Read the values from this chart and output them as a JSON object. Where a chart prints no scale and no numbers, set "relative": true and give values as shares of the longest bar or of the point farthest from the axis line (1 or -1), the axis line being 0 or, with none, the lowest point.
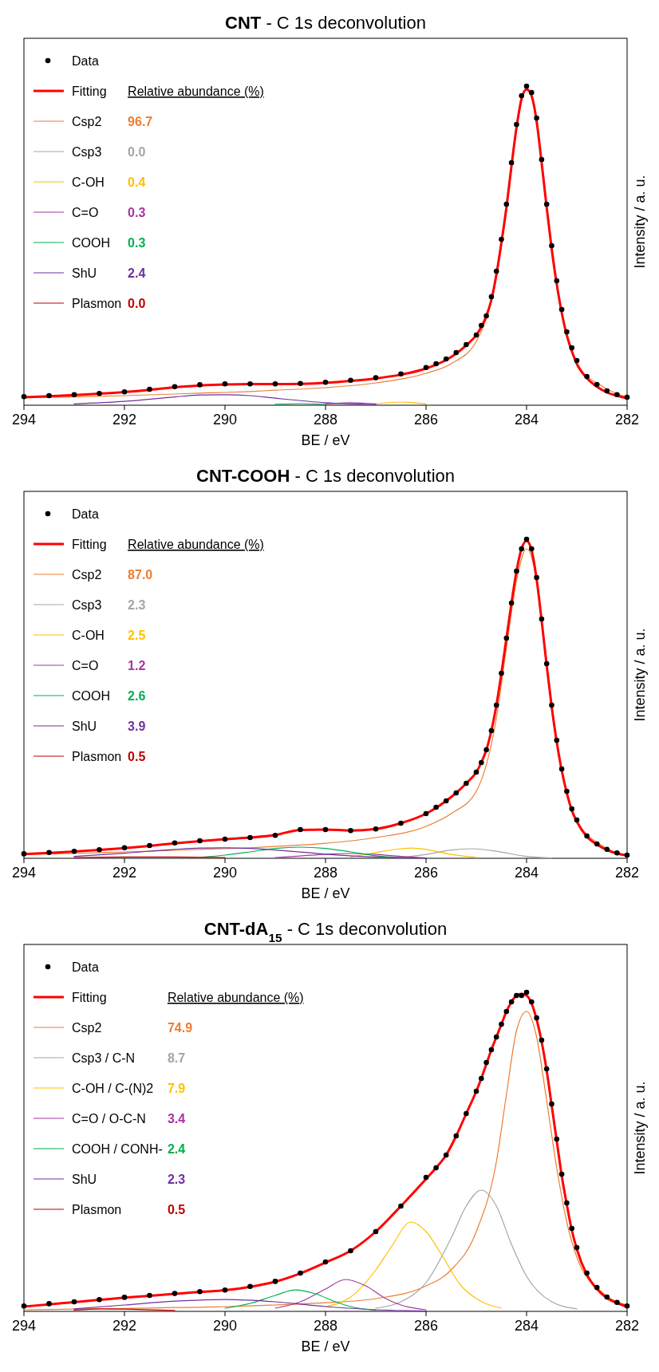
{
  "chart_data": [
    {
      "type": "line",
      "title": "CNT - C 1s deconvolution",
      "xlabel": "BE / eV",
      "ylabel": "Intensity / a. u.",
      "relative": true,
      "xlim": [
        294,
        282
      ],
      "xticks": [
        294,
        292,
        290,
        288,
        286,
        284,
        282
      ],
      "legend": "top left",
      "x": [
        294,
        293.5,
        293,
        292.5,
        292,
        291.5,
        291,
        290.5,
        290,
        289.5,
        289,
        288.5,
        288,
        287.5,
        287,
        286.5,
        286,
        285.8,
        285.6,
        285.4,
        285.2,
        285,
        284.9,
        284.8,
        284.7,
        284.6,
        284.5,
        284.4,
        284.3,
        284.2,
        284.1,
        284,
        283.9,
        283.8,
        283.7,
        283.6,
        283.5,
        283.4,
        283.3,
        283.2,
        283.1,
        283,
        282.8,
        282.6,
        282.4,
        282.2,
        282
      ],
      "series": [
        {
          "name": "Data",
          "type": "scatter",
          "marker": "circle",
          "color": "#000000",
          "values": [
            0.027,
            0.03,
            0.033,
            0.037,
            0.042,
            0.05,
            0.058,
            0.064,
            0.067,
            0.067,
            0.067,
            0.068,
            0.072,
            0.078,
            0.086,
            0.098,
            0.118,
            0.13,
            0.145,
            0.165,
            0.19,
            0.22,
            0.25,
            0.28,
            0.34,
            0.42,
            0.52,
            0.63,
            0.76,
            0.88,
            0.97,
            1,
            0.98,
            0.9,
            0.77,
            0.63,
            0.5,
            0.39,
            0.3,
            0.23,
            0.18,
            0.14,
            0.09,
            0.065,
            0.045,
            0.033,
            0.025
          ]
        },
        {
          "name": "Fitting",
          "color": "#ff0000",
          "values": [
            0.025,
            0.028,
            0.032,
            0.036,
            0.041,
            0.048,
            0.056,
            0.062,
            0.065,
            0.066,
            0.066,
            0.067,
            0.07,
            0.076,
            0.084,
            0.096,
            0.115,
            0.127,
            0.142,
            0.162,
            0.188,
            0.22,
            0.245,
            0.28,
            0.33,
            0.41,
            0.51,
            0.62,
            0.75,
            0.87,
            0.96,
            0.99,
            0.97,
            0.89,
            0.76,
            0.62,
            0.49,
            0.38,
            0.29,
            0.22,
            0.17,
            0.13,
            0.085,
            0.058,
            0.04,
            0.03,
            0.022
          ]
        },
        {
          "name": "Csp2",
          "color": "#ed7d31",
          "x": [
            294,
            293,
            292,
            291,
            290.5,
            290,
            289.5,
            289,
            288,
            287,
            286,
            285.5,
            285,
            284.6,
            284.4,
            284.2,
            284,
            283.8,
            283.6,
            283.4,
            283.2,
            283,
            282.5,
            282
          ],
          "values": [
            0.024,
            0.026,
            0.03,
            0.035,
            0.038,
            0.04,
            0.043,
            0.047,
            0.055,
            0.07,
            0.1,
            0.13,
            0.2,
            0.4,
            0.61,
            0.87,
            0.99,
            0.89,
            0.62,
            0.38,
            0.22,
            0.13,
            0.06,
            0.025
          ]
        },
        {
          "name": "Csp3",
          "color": "#a5a5a5",
          "values": [
            null,
            null,
            null,
            null,
            null,
            null,
            null,
            null,
            null,
            null,
            null,
            null,
            null,
            null,
            null,
            null,
            null,
            null,
            null,
            null,
            null,
            null,
            null,
            null,
            null,
            null,
            null,
            null,
            null,
            null,
            null,
            null,
            null,
            null,
            null,
            null,
            null,
            null,
            null,
            null,
            null,
            null,
            null,
            null,
            null,
            null,
            null
          ]
        },
        {
          "name": "C-OH",
          "color": "#ffc000",
          "x": [
            287,
            286.5,
            286
          ],
          "values": [
            0.004,
            0.01,
            0.004
          ]
        },
        {
          "name": "C=O",
          "color": "#a4379f",
          "x": [
            288,
            287.5,
            287
          ],
          "values": [
            0.004,
            0.008,
            0.004
          ]
        },
        {
          "name": "COOH",
          "color": "#00b050",
          "x": [
            289,
            288.5,
            288
          ],
          "values": [
            0.003,
            0.005,
            0.003
          ]
        },
        {
          "name": "ShU",
          "color": "#7030a0",
          "x": [
            293,
            292,
            291,
            290.5,
            290,
            289.5,
            289,
            288,
            287
          ],
          "values": [
            0.004,
            0.012,
            0.026,
            0.032,
            0.033,
            0.03,
            0.022,
            0.008,
            0.002
          ]
        },
        {
          "name": "Plasmon",
          "color": "#c00000",
          "values": [
            null,
            null,
            null,
            null,
            null,
            null,
            null,
            null,
            null,
            null,
            null,
            null,
            null,
            null,
            null,
            null,
            null,
            null,
            null,
            null,
            null,
            null,
            null,
            null,
            null,
            null,
            null,
            null,
            null,
            null,
            null,
            null,
            null,
            null,
            null,
            null,
            null,
            null,
            null,
            null,
            null,
            null,
            null,
            null,
            null,
            null,
            null
          ]
        }
      ],
      "annotations": [
        "Relative abundance (%)",
        "96.7",
        "0.0",
        "0.4",
        "0.3",
        "0.3",
        "2.4",
        "0.0"
      ]
    },
    {
      "type": "line",
      "title": "CNT-COOH - C 1s deconvolution",
      "xlabel": "BE / eV",
      "ylabel": "Intensity / a. u.",
      "relative": true,
      "xlim": [
        294,
        282
      ],
      "xticks": [
        294,
        292,
        290,
        288,
        286,
        284,
        282
      ],
      "legend": "top left",
      "x": [
        294,
        293.5,
        293,
        292.5,
        292,
        291.5,
        291,
        290.5,
        290,
        289.5,
        289,
        288.5,
        288,
        287.5,
        287,
        286.5,
        286,
        285.8,
        285.6,
        285.4,
        285.2,
        285,
        284.9,
        284.8,
        284.7,
        284.6,
        284.5,
        284.4,
        284.3,
        284.2,
        284.1,
        284,
        283.9,
        283.8,
        283.7,
        283.6,
        283.5,
        283.4,
        283.3,
        283.2,
        283.1,
        283,
        282.8,
        282.6,
        282.4,
        282.2,
        282
      ],
      "series": [
        {
          "name": "Data",
          "type": "scatter",
          "marker": "circle",
          "color": "#000000",
          "values": [
            0.014,
            0.018,
            0.022,
            0.027,
            0.033,
            0.04,
            0.048,
            0.055,
            0.06,
            0.065,
            0.072,
            0.09,
            0.09,
            0.087,
            0.092,
            0.11,
            0.14,
            0.16,
            0.18,
            0.205,
            0.235,
            0.27,
            0.3,
            0.34,
            0.4,
            0.48,
            0.58,
            0.69,
            0.8,
            0.9,
            0.97,
            1,
            0.97,
            0.88,
            0.75,
            0.61,
            0.48,
            0.37,
            0.28,
            0.21,
            0.155,
            0.12,
            0.07,
            0.045,
            0.028,
            0.017,
            0.01
          ]
        },
        {
          "name": "Fitting",
          "color": "#ff0000",
          "values": [
            0.013,
            0.017,
            0.021,
            0.026,
            0.032,
            0.039,
            0.047,
            0.054,
            0.06,
            0.065,
            0.073,
            0.089,
            0.09,
            0.087,
            0.092,
            0.11,
            0.14,
            0.158,
            0.18,
            0.205,
            0.235,
            0.27,
            0.3,
            0.34,
            0.4,
            0.48,
            0.58,
            0.69,
            0.8,
            0.9,
            0.97,
            0.995,
            0.965,
            0.875,
            0.745,
            0.605,
            0.475,
            0.365,
            0.275,
            0.205,
            0.15,
            0.115,
            0.068,
            0.043,
            0.026,
            0.015,
            0.009
          ]
        },
        {
          "name": "Csp2",
          "color": "#ed7d31",
          "x": [
            294,
            293,
            292,
            291,
            290.5,
            290,
            289.5,
            289,
            288,
            287,
            286,
            285.5,
            285,
            284.6,
            284.4,
            284.2,
            284,
            283.8,
            283.6,
            283.4,
            283.2,
            283,
            282.5,
            282
          ],
          "values": [
            0.012,
            0.015,
            0.02,
            0.025,
            0.028,
            0.03,
            0.033,
            0.037,
            0.047,
            0.065,
            0.1,
            0.14,
            0.21,
            0.44,
            0.66,
            0.87,
            0.97,
            0.87,
            0.6,
            0.37,
            0.21,
            0.12,
            0.04,
            0.01
          ]
        },
        {
          "name": "Csp3",
          "color": "#a5a5a5",
          "x": [
            286.5,
            286,
            285.5,
            285.1,
            284.6,
            284,
            283.5
          ],
          "values": [
            0.003,
            0.012,
            0.026,
            0.03,
            0.022,
            0.006,
            0.001
          ]
        },
        {
          "name": "C-OH",
          "color": "#ffc000",
          "x": [
            287.5,
            287,
            286.5,
            286.3,
            286,
            285.5,
            285
          ],
          "values": [
            0.004,
            0.018,
            0.03,
            0.032,
            0.028,
            0.012,
            0.003
          ]
        },
        {
          "name": "C=O",
          "color": "#a4379f",
          "x": [
            289,
            288.5,
            288,
            287.5,
            287,
            286.5,
            286
          ],
          "values": [
            0.002,
            0.007,
            0.013,
            0.015,
            0.012,
            0.006,
            0.001
          ]
        },
        {
          "name": "COOH",
          "color": "#00b050",
          "x": [
            290.5,
            290,
            289.5,
            289,
            288.5,
            288,
            287.5,
            287,
            286.5
          ],
          "values": [
            0.003,
            0.01,
            0.02,
            0.031,
            0.035,
            0.031,
            0.02,
            0.008,
            0.002
          ]
        },
        {
          "name": "ShU",
          "color": "#7030a0",
          "x": [
            293,
            292,
            291,
            290.5,
            290,
            289.5,
            289,
            288,
            287,
            286
          ],
          "values": [
            0.006,
            0.016,
            0.028,
            0.032,
            0.033,
            0.031,
            0.026,
            0.013,
            0.004,
            0.001
          ]
        },
        {
          "name": "Plasmon",
          "color": "#c00000",
          "x": [
            293,
            292,
            291,
            290
          ],
          "values": [
            0.002,
            0.004,
            0.004,
            0.002
          ]
        }
      ],
      "annotations": [
        "Relative abundance (%)",
        "87.0",
        "2.3",
        "2.5",
        "1.2",
        "2.6",
        "3.9",
        "0.5"
      ]
    },
    {
      "type": "line",
      "title": "CNT-dA$_{15}$ - C 1s deconvolution",
      "xlabel": "BE / eV",
      "ylabel": "Intensity / a. u.",
      "relative": true,
      "xlim": [
        294,
        282
      ],
      "xticks": [
        294,
        292,
        290,
        288,
        286,
        284,
        282
      ],
      "legend": "top left",
      "x": [
        294,
        293.5,
        293,
        292.5,
        292,
        291.5,
        291,
        290.5,
        290,
        289.5,
        289,
        288.5,
        288,
        287.5,
        287,
        286.5,
        286,
        285.8,
        285.6,
        285.4,
        285.2,
        285,
        284.9,
        284.8,
        284.7,
        284.6,
        284.5,
        284.4,
        284.3,
        284.2,
        284.1,
        284,
        283.9,
        283.8,
        283.7,
        283.6,
        283.5,
        283.4,
        283.3,
        283.2,
        283.1,
        283,
        282.8,
        282.6,
        282.4,
        282.2,
        282
      ],
      "series": [
        {
          "name": "Data",
          "type": "scatter",
          "marker": "circle",
          "color": "#000000",
          "values": [
            0.017,
            0.024,
            0.03,
            0.037,
            0.044,
            0.05,
            0.056,
            0.062,
            0.067,
            0.078,
            0.094,
            0.12,
            0.155,
            0.19,
            0.25,
            0.33,
            0.42,
            0.45,
            0.49,
            0.55,
            0.62,
            0.69,
            0.73,
            0.78,
            0.82,
            0.86,
            0.9,
            0.94,
            0.97,
            0.99,
            0.99,
            1,
            0.97,
            0.92,
            0.85,
            0.76,
            0.65,
            0.54,
            0.43,
            0.34,
            0.26,
            0.2,
            0.12,
            0.075,
            0.045,
            0.028,
            0.017
          ]
        },
        {
          "name": "Fitting",
          "color": "#ff0000",
          "values": [
            0.015,
            0.022,
            0.029,
            0.036,
            0.043,
            0.049,
            0.055,
            0.061,
            0.066,
            0.077,
            0.093,
            0.119,
            0.153,
            0.19,
            0.25,
            0.33,
            0.415,
            0.45,
            0.49,
            0.55,
            0.62,
            0.69,
            0.73,
            0.775,
            0.82,
            0.86,
            0.9,
            0.94,
            0.97,
            0.99,
            0.995,
            0.99,
            0.965,
            0.915,
            0.845,
            0.755,
            0.645,
            0.535,
            0.425,
            0.335,
            0.255,
            0.195,
            0.115,
            0.07,
            0.042,
            0.026,
            0.015
          ]
        },
        {
          "name": "Csp2",
          "color": "#ed7d31",
          "x": [
            294,
            293,
            292,
            291,
            290.5,
            290,
            289.5,
            289,
            288,
            287,
            286,
            285.5,
            285,
            284.6,
            284.4,
            284.2,
            284,
            283.8,
            283.6,
            283.4,
            283.2,
            283,
            282.5,
            282
          ],
          "values": [
            0.005,
            0.007,
            0.009,
            0.012,
            0.013,
            0.015,
            0.017,
            0.02,
            0.027,
            0.04,
            0.08,
            0.13,
            0.25,
            0.47,
            0.68,
            0.88,
            0.94,
            0.86,
            0.66,
            0.45,
            0.28,
            0.17,
            0.06,
            0.02
          ]
        },
        {
          "name": "Csp3 / C-N",
          "color": "#a5a5a5",
          "x": [
            287,
            286.5,
            286,
            285.5,
            285.2,
            284.9,
            284.6,
            284.3,
            284,
            283.5,
            283
          ],
          "values": [
            0.01,
            0.03,
            0.09,
            0.23,
            0.33,
            0.38,
            0.33,
            0.21,
            0.11,
            0.03,
            0.008
          ]
        },
        {
          "name": "C-OH / C-(N)2",
          "color": "#ffc000",
          "x": [
            288,
            287.5,
            287,
            286.7,
            286.3,
            286,
            285.7,
            285.3,
            285,
            284.5
          ],
          "values": [
            0.015,
            0.045,
            0.13,
            0.2,
            0.28,
            0.25,
            0.18,
            0.08,
            0.04,
            0.01
          ]
        },
        {
          "name": "C=O / O-C-N",
          "color": "#a4379f",
          "x": [
            289,
            288.5,
            288,
            287.6,
            287.2,
            286.8,
            286.5,
            286
          ],
          "values": [
            0.01,
            0.03,
            0.07,
            0.1,
            0.08,
            0.04,
            0.02,
            0.005
          ]
        },
        {
          "name": "COOH / CONH-",
          "color": "#00b050",
          "x": [
            290,
            289.5,
            289,
            288.6,
            288.2,
            287.8,
            287.5,
            287
          ],
          "values": [
            0.01,
            0.025,
            0.05,
            0.067,
            0.055,
            0.03,
            0.015,
            0.004
          ]
        },
        {
          "name": "ShU",
          "color": "#7030a0",
          "x": [
            293,
            292,
            291,
            290,
            289,
            288,
            287,
            286
          ],
          "values": [
            0.008,
            0.02,
            0.032,
            0.037,
            0.03,
            0.015,
            0.005,
            0.001
          ]
        },
        {
          "name": "Plasmon",
          "color": "#c00000",
          "x": [
            293,
            292.5,
            292,
            291
          ],
          "values": [
            0.004,
            0.008,
            0.007,
            0.003
          ]
        }
      ],
      "annotations": [
        "Relative abundance (%)",
        "74.9",
        "8.7",
        "7.9",
        "3.4",
        "2.4",
        "2.3",
        "0.5"
      ]
    }
  ]
}
